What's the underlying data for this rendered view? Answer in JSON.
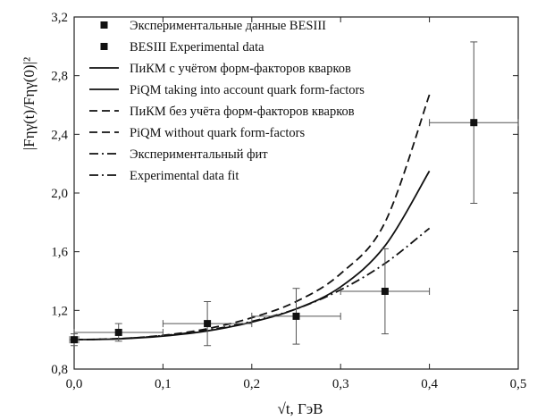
{
  "chart_data": {
    "type": "line",
    "xlabel": "√t, ГэВ",
    "ylabel": "|Fηγ(t)/Fηγ(0)|²",
    "xlim": [
      0.0,
      0.5
    ],
    "ylim": [
      0.8,
      3.2
    ],
    "x_ticks": [
      "0,0",
      "0,1",
      "0,2",
      "0,3",
      "0,4",
      "0,5"
    ],
    "y_ticks": [
      "0,8",
      "1,2",
      "1,6",
      "2,0",
      "2,4",
      "2,8",
      "3,2"
    ],
    "grid": false,
    "legend_position": "top-left",
    "legend": [
      {
        "label": "Экспериментальные данные BESIII",
        "style": "square"
      },
      {
        "label": "BESIII Experimental data",
        "style": "square"
      },
      {
        "label": "ПиКМ с учётом форм-факторов кварков",
        "style": "solid"
      },
      {
        "label": "PiQM taking into account quark form-factors",
        "style": "solid"
      },
      {
        "label": "ПиКМ без учёта форм-факторов кварков",
        "style": "dashed"
      },
      {
        "label": "PiQM without quark form-factors",
        "style": "dashed"
      },
      {
        "label": "Экспериментальный фит",
        "style": "dashdot"
      },
      {
        "label": "Experimental data fit",
        "style": "dashdot"
      }
    ],
    "points": {
      "name": "BESIII",
      "x": [
        0.0,
        0.05,
        0.15,
        0.25,
        0.35,
        0.45
      ],
      "y": [
        1.0,
        1.05,
        1.11,
        1.16,
        1.33,
        2.48
      ],
      "x_err": [
        0.005,
        0.05,
        0.05,
        0.05,
        0.05,
        0.05
      ],
      "y_err": [
        0.04,
        0.06,
        0.15,
        0.19,
        0.29,
        0.55
      ]
    },
    "series": [
      {
        "style": "solid",
        "x": [
          0.0,
          0.05,
          0.1,
          0.15,
          0.2,
          0.25,
          0.3,
          0.35,
          0.4
        ],
        "y": [
          1.0,
          1.006,
          1.025,
          1.06,
          1.12,
          1.21,
          1.36,
          1.64,
          2.15
        ]
      },
      {
        "style": "dashed",
        "x": [
          0.0,
          0.05,
          0.1,
          0.15,
          0.2,
          0.25,
          0.3,
          0.35,
          0.4
        ],
        "y": [
          1.0,
          1.007,
          1.03,
          1.075,
          1.15,
          1.26,
          1.45,
          1.8,
          2.67
        ]
      },
      {
        "style": "dashdot",
        "x": [
          0.0,
          0.05,
          0.1,
          0.15,
          0.2,
          0.25,
          0.3,
          0.35,
          0.4
        ],
        "y": [
          1.0,
          1.007,
          1.028,
          1.065,
          1.125,
          1.21,
          1.34,
          1.52,
          1.76
        ]
      }
    ]
  }
}
